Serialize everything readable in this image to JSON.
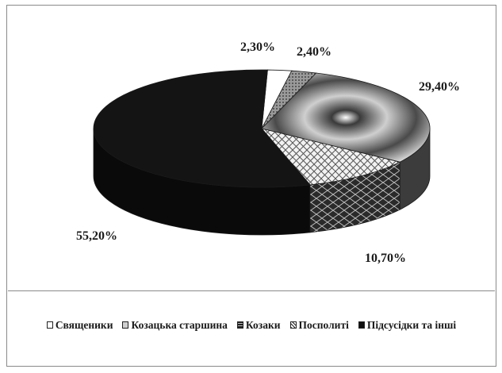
{
  "chart_data": {
    "type": "pie",
    "title": "",
    "categories": [
      "Священики",
      "Козацька старшина",
      "Козаки",
      "Посполиті",
      "Підсусідки та інші"
    ],
    "values": [
      2.3,
      2.4,
      29.4,
      10.7,
      55.2
    ],
    "data_labels": [
      "2,30%",
      "2,40%",
      "29,40%",
      "10,70%",
      "55,20%"
    ],
    "legend": "bottom",
    "colors": [
      "#ffffff",
      "#bdbdbd",
      "#6a6a6a",
      "#d9d9d9",
      "#141414"
    ]
  }
}
